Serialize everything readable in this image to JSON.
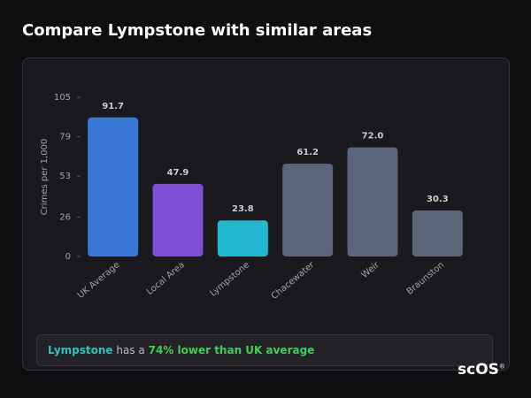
{
  "chart_data": {
    "type": "bar",
    "title": "Compare Lympstone with similar areas",
    "y_label": "Crimes per 1,000",
    "categories": [
      "UK Average",
      "Local Area",
      "Lympstone",
      "Chacewater",
      "Weir",
      "Braunston"
    ],
    "values": [
      91.7,
      47.9,
      23.8,
      61.2,
      72.0,
      30.3
    ],
    "value_labels": [
      "91.7",
      "47.9",
      "23.8",
      "61.2",
      "72.0",
      "30.3"
    ],
    "colors": [
      "#3a78d8",
      "#7b4fd6",
      "#22b8cf",
      "#5b6577",
      "#5b6577",
      "#5b6577"
    ],
    "ylim": [
      0,
      105
    ],
    "yticks": [
      0,
      26,
      53,
      79,
      105
    ]
  },
  "summary": {
    "area": "Lympstone",
    "text": "has a",
    "highlight": "74% lower than UK average"
  },
  "logo": {
    "text": "scOS",
    "mark": "®"
  }
}
